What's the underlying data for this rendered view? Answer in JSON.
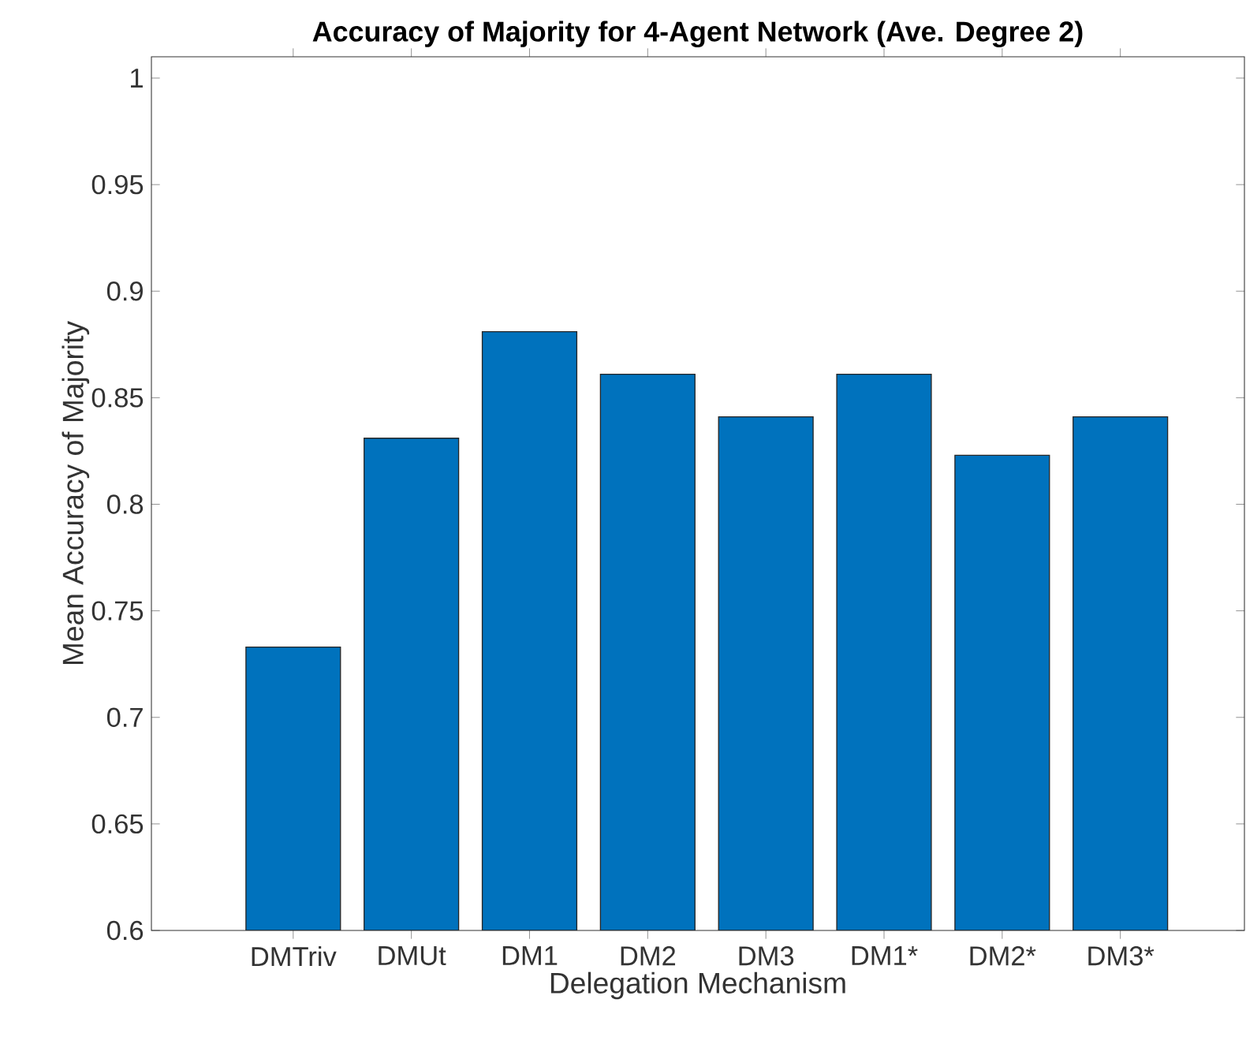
{
  "chart_data": {
    "type": "bar",
    "title": "Accuracy of Majority for 4-Agent Network (Ave. Degree 2)",
    "xlabel": "Delegation Mechanism",
    "ylabel": "Mean Accuracy of Majority",
    "categories": [
      "DMTriv",
      "DMUt",
      "DM1",
      "DM2",
      "DM3",
      "DM1*",
      "DM2*",
      "DM3*"
    ],
    "values": [
      0.733,
      0.831,
      0.881,
      0.861,
      0.841,
      0.861,
      0.823,
      0.841
    ],
    "color": "#0072bd",
    "ylim": [
      0.6,
      1.01
    ],
    "yticks": [
      0.6,
      0.65,
      0.7,
      0.75,
      0.8,
      0.85,
      0.9,
      0.95,
      1
    ],
    "grid": false
  }
}
